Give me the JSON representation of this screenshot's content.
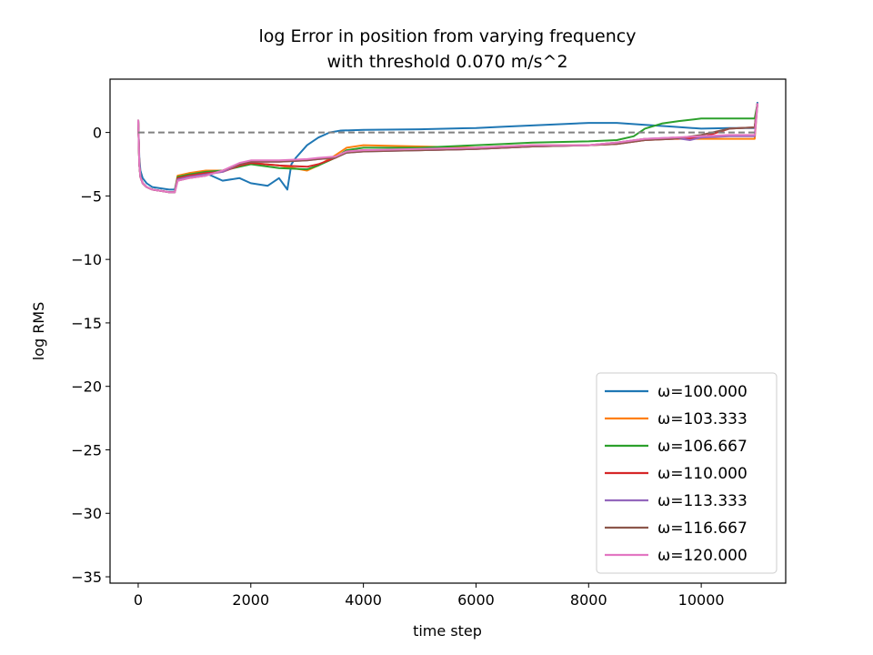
{
  "chart_data": {
    "type": "line",
    "title": "log Error in position from varying frequency",
    "subtitle": "with threshold 0.070 m/s^2",
    "xlabel": "time step",
    "ylabel": "log RMS",
    "xlim": [
      -500,
      11500
    ],
    "ylim": [
      -35.5,
      4.2
    ],
    "xticks": [
      0,
      2000,
      4000,
      6000,
      8000,
      10000
    ],
    "xtick_labels": [
      "0",
      "2000",
      "4000",
      "6000",
      "8000",
      "10000"
    ],
    "yticks": [
      0,
      -5,
      -10,
      -15,
      -20,
      -25,
      -30,
      -35
    ],
    "ytick_labels": [
      "0",
      "−5",
      "−10",
      "−15",
      "−20",
      "−25",
      "−30",
      "−35"
    ],
    "grid": false,
    "legend_position": "lower-right",
    "reference_line": {
      "y": 0,
      "style": "dashed",
      "color": "#808080"
    },
    "series": [
      {
        "name": "ω=100.000",
        "color": "#1f77b4",
        "x": [
          0,
          20,
          40,
          80,
          150,
          250,
          400,
          550,
          650,
          700,
          900,
          1200,
          1500,
          1800,
          2000,
          2300,
          2500,
          2650,
          2720,
          2800,
          3000,
          3200,
          3400,
          3600,
          4000,
          5000,
          6000,
          6500,
          7000,
          8000,
          8500,
          9000,
          9500,
          10000,
          10500,
          10950,
          11000
        ],
        "y": [
          1.0,
          -2.0,
          -3.0,
          -3.6,
          -4.0,
          -4.3,
          -4.4,
          -4.5,
          -4.5,
          -3.5,
          -3.4,
          -3.2,
          -3.8,
          -3.6,
          -4.0,
          -4.2,
          -3.6,
          -4.5,
          -2.5,
          -2.0,
          -1.0,
          -0.4,
          0.0,
          0.15,
          0.2,
          0.25,
          0.35,
          0.45,
          0.55,
          0.75,
          0.75,
          0.6,
          0.45,
          0.3,
          0.35,
          0.35,
          2.4
        ]
      },
      {
        "name": "ω=103.333",
        "color": "#ff7f0e",
        "x": [
          0,
          20,
          40,
          80,
          150,
          250,
          400,
          550,
          650,
          700,
          900,
          1200,
          1500,
          1800,
          2000,
          2500,
          3000,
          3200,
          3500,
          3700,
          4000,
          5000,
          6000,
          6500,
          7000,
          8000,
          8500,
          9000,
          9500,
          10000,
          10500,
          10950,
          11000
        ],
        "y": [
          1.0,
          -2.5,
          -3.5,
          -4.0,
          -4.3,
          -4.5,
          -4.6,
          -4.7,
          -4.7,
          -3.4,
          -3.2,
          -3.0,
          -3.0,
          -2.6,
          -2.4,
          -2.6,
          -3.0,
          -2.6,
          -1.8,
          -1.2,
          -1.0,
          -1.1,
          -1.2,
          -1.1,
          -1.0,
          -1.0,
          -0.8,
          -0.5,
          -0.5,
          -0.5,
          -0.5,
          -0.5,
          2.3
        ]
      },
      {
        "name": "ω=106.667",
        "color": "#2ca02c",
        "x": [
          0,
          20,
          40,
          80,
          150,
          250,
          400,
          550,
          650,
          700,
          900,
          1200,
          1500,
          1800,
          2000,
          2500,
          3000,
          3200,
          3500,
          3700,
          4000,
          5000,
          6000,
          6500,
          7000,
          8000,
          8500,
          8800,
          9000,
          9300,
          9600,
          10000,
          10500,
          10950,
          11000
        ],
        "y": [
          1.0,
          -2.5,
          -3.5,
          -4.0,
          -4.3,
          -4.5,
          -4.6,
          -4.7,
          -4.7,
          -3.5,
          -3.3,
          -3.1,
          -3.0,
          -2.7,
          -2.5,
          -2.8,
          -2.9,
          -2.6,
          -2.0,
          -1.4,
          -1.2,
          -1.2,
          -1.0,
          -0.9,
          -0.8,
          -0.7,
          -0.6,
          -0.3,
          0.3,
          0.7,
          0.9,
          1.1,
          1.1,
          1.1,
          2.3
        ]
      },
      {
        "name": "ω=110.000",
        "color": "#d62728",
        "x": [
          0,
          20,
          40,
          80,
          150,
          250,
          400,
          550,
          650,
          700,
          900,
          1200,
          1500,
          1800,
          2000,
          2500,
          3000,
          3200,
          3500,
          3700,
          4000,
          5000,
          6000,
          6500,
          7000,
          8000,
          8500,
          9000,
          9500,
          10000,
          10500,
          10950,
          11000
        ],
        "y": [
          1.0,
          -2.5,
          -3.5,
          -4.0,
          -4.3,
          -4.5,
          -4.6,
          -4.7,
          -4.7,
          -3.6,
          -3.4,
          -3.2,
          -3.1,
          -2.6,
          -2.4,
          -2.6,
          -2.7,
          -2.5,
          -2.0,
          -1.5,
          -1.4,
          -1.4,
          -1.3,
          -1.2,
          -1.1,
          -1.0,
          -0.9,
          -0.6,
          -0.5,
          -0.4,
          0.3,
          0.4,
          2.3
        ]
      },
      {
        "name": "ω=113.333",
        "color": "#9467bd",
        "x": [
          0,
          20,
          40,
          80,
          150,
          250,
          400,
          550,
          650,
          700,
          900,
          1200,
          1500,
          1800,
          2000,
          2500,
          3000,
          3200,
          3500,
          3700,
          4000,
          5000,
          6000,
          6500,
          7000,
          8000,
          8500,
          9000,
          9500,
          9800,
          10000,
          10500,
          10950,
          11000
        ],
        "y": [
          1.0,
          -2.5,
          -3.5,
          -4.0,
          -4.3,
          -4.5,
          -4.6,
          -4.7,
          -4.7,
          -3.7,
          -3.5,
          -3.3,
          -3.1,
          -2.5,
          -2.3,
          -2.3,
          -2.2,
          -2.1,
          -2.0,
          -1.6,
          -1.5,
          -1.4,
          -1.3,
          -1.2,
          -1.1,
          -1.0,
          -0.8,
          -0.5,
          -0.4,
          -0.6,
          -0.4,
          -0.3,
          -0.3,
          2.3
        ]
      },
      {
        "name": "ω=116.667",
        "color": "#8c564b",
        "x": [
          0,
          20,
          40,
          80,
          150,
          250,
          400,
          550,
          650,
          700,
          900,
          1200,
          1500,
          1800,
          2000,
          2500,
          3000,
          3200,
          3500,
          3700,
          4000,
          5000,
          6000,
          6500,
          7000,
          8000,
          8500,
          9000,
          9500,
          10000,
          10500,
          10950,
          11000
        ],
        "y": [
          1.0,
          -2.5,
          -3.5,
          -4.0,
          -4.3,
          -4.5,
          -4.6,
          -4.7,
          -4.7,
          -3.8,
          -3.6,
          -3.4,
          -3.0,
          -2.5,
          -2.3,
          -2.3,
          -2.2,
          -2.1,
          -2.0,
          -1.6,
          -1.5,
          -1.4,
          -1.3,
          -1.2,
          -1.1,
          -1.0,
          -0.9,
          -0.6,
          -0.5,
          -0.2,
          0.3,
          0.4,
          2.3
        ]
      },
      {
        "name": "ω=120.000",
        "color": "#e377c2",
        "x": [
          0,
          20,
          40,
          80,
          150,
          250,
          400,
          550,
          650,
          700,
          900,
          1200,
          1500,
          1800,
          2000,
          2500,
          3000,
          3200,
          3500,
          3700,
          4000,
          5000,
          6000,
          6500,
          7000,
          8000,
          8500,
          9000,
          9500,
          10000,
          10500,
          10950,
          11000
        ],
        "y": [
          1.0,
          -2.5,
          -3.5,
          -4.0,
          -4.3,
          -4.5,
          -4.6,
          -4.7,
          -4.7,
          -3.8,
          -3.6,
          -3.4,
          -3.0,
          -2.4,
          -2.2,
          -2.2,
          -2.1,
          -2.0,
          -1.9,
          -1.5,
          -1.4,
          -1.3,
          -1.2,
          -1.1,
          -1.0,
          -1.0,
          -0.8,
          -0.5,
          -0.4,
          -0.3,
          -0.2,
          -0.2,
          2.3
        ]
      }
    ]
  }
}
